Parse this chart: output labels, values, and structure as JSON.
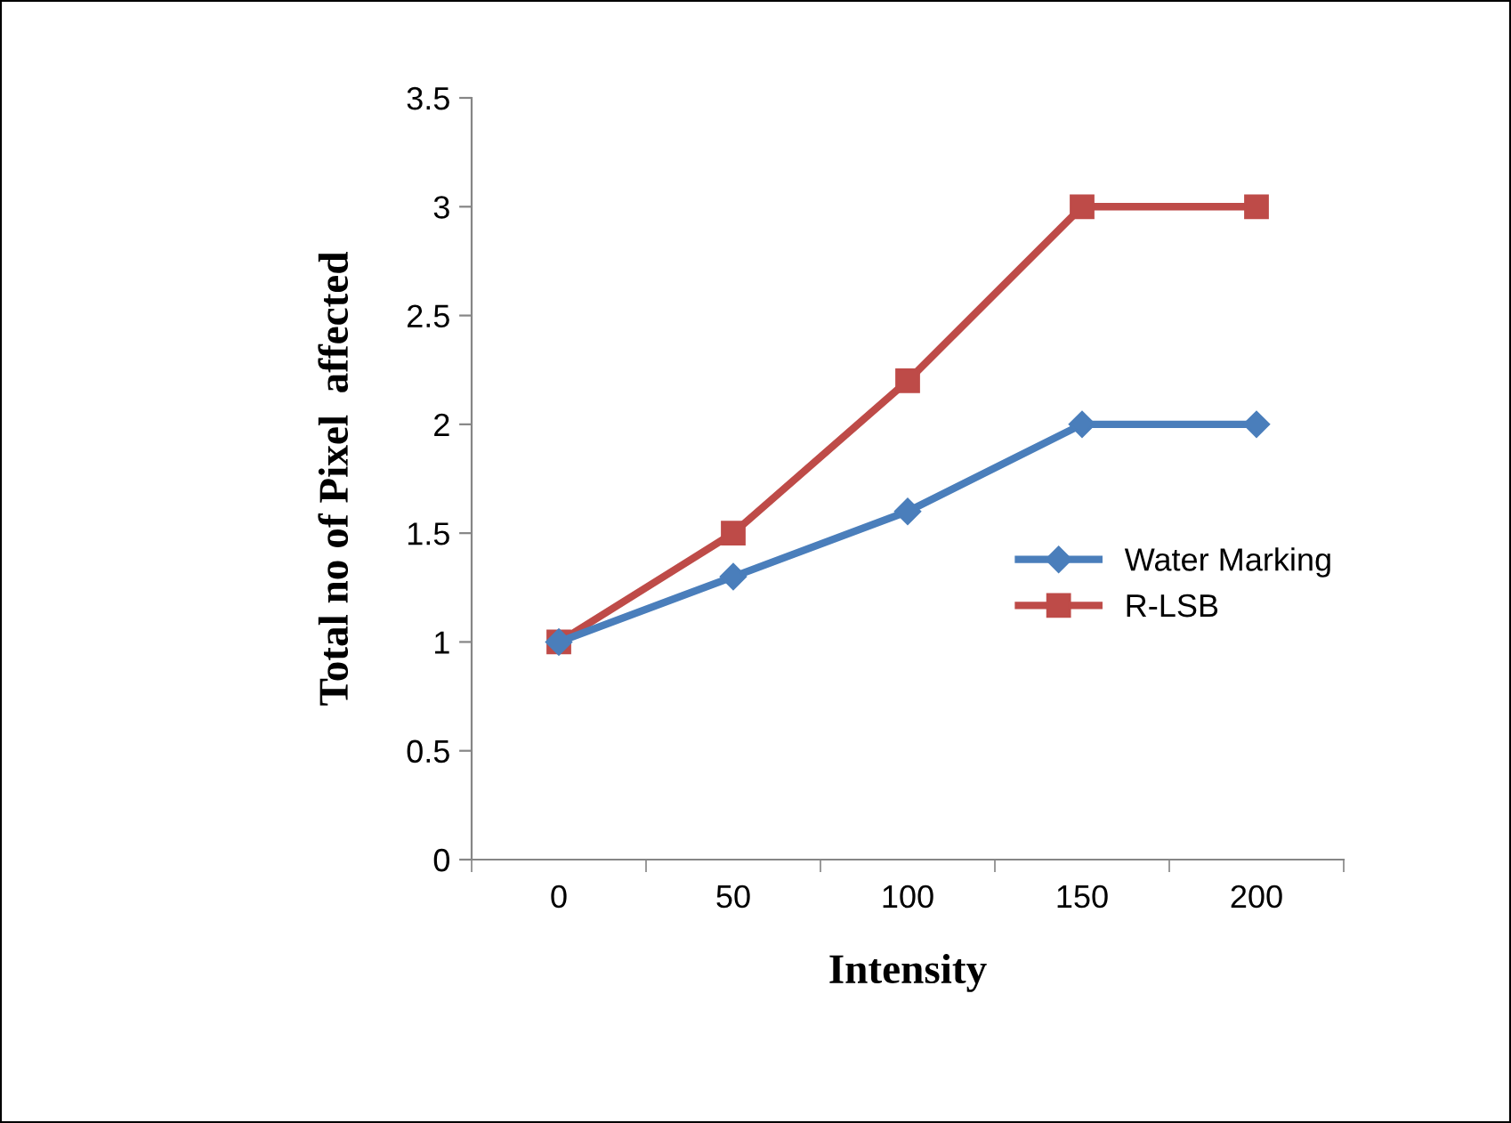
{
  "chart_data": {
    "type": "line",
    "xlabel": "Intensity",
    "ylabel": "Total no of Pixel  affected",
    "categories": [
      "0",
      "50",
      "100",
      "150",
      "200"
    ],
    "series": [
      {
        "name": "Water Marking",
        "color": "#4a7ebb",
        "marker": "diamond",
        "values": [
          1,
          1.3,
          1.6,
          2,
          2
        ]
      },
      {
        "name": "R-LSB",
        "color": "#be4b48",
        "marker": "square",
        "values": [
          1,
          1.5,
          2.2,
          3,
          3
        ]
      }
    ],
    "ylim": [
      0,
      3.5
    ],
    "yticks": [
      0,
      0.5,
      1,
      1.5,
      2,
      2.5,
      3,
      3.5
    ],
    "grid": false,
    "legend": "right",
    "line_style": "solid"
  }
}
